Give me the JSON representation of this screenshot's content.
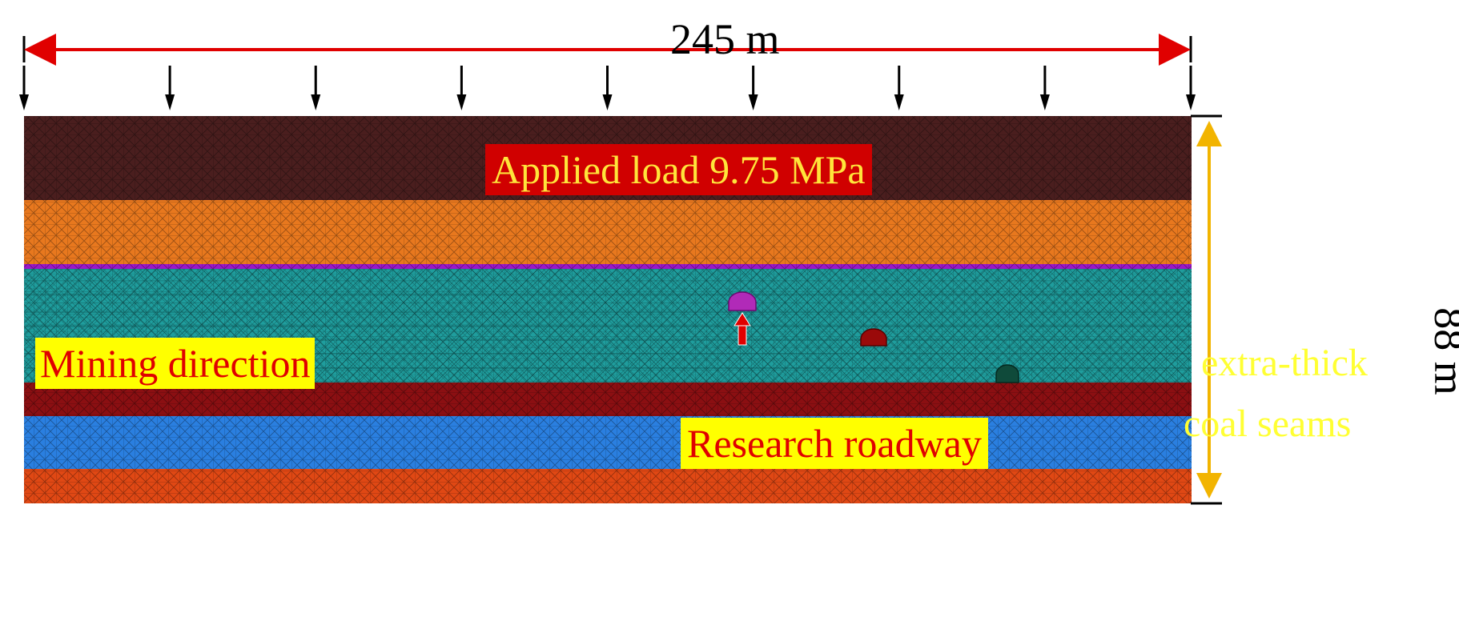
{
  "dimensions": {
    "width_label": "245 m",
    "height_label": "88 m"
  },
  "load": {
    "label": "Applied load 9.75 MPa",
    "arrow_count": 9
  },
  "annotations": {
    "mining_direction": "Mining direction",
    "research_roadway": "Research roadway",
    "seam_line_1": "extra-thick",
    "seam_line_2": "coal seams"
  },
  "strata": [
    {
      "name": "top-overburden",
      "color": "#4a1e1e"
    },
    {
      "name": "upper-rock",
      "color": "#e8781e"
    },
    {
      "name": "thin-roof",
      "color": "#9a18c8"
    },
    {
      "name": "coal-seam",
      "color": "#1f9d9d"
    },
    {
      "name": "floor-mudstone",
      "color": "#8b0f12"
    },
    {
      "name": "lower-rock",
      "color": "#2a7fe0"
    },
    {
      "name": "bottom-rock",
      "color": "#e04814"
    }
  ],
  "colors": {
    "dimension_arrow": "#e00000",
    "height_arrow": "#f2b400",
    "load_arrow": "#000000",
    "direction_arrow_fill": "#ff7a2a",
    "direction_arrow_stroke": "#e00000",
    "roadway_purple": "#b12ab8",
    "roadway_red": "#9a0a0a"
  }
}
